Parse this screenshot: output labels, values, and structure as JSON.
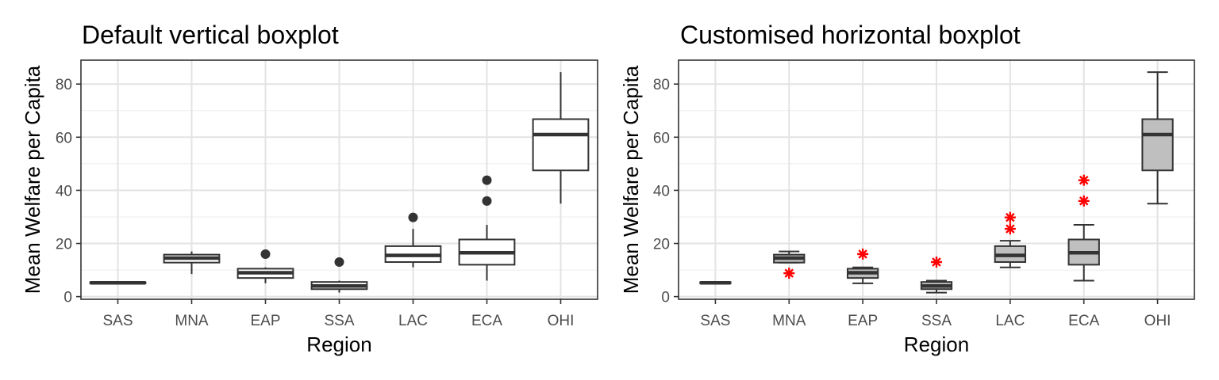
{
  "chart_data": [
    {
      "type": "box",
      "title": "Default vertical boxplot",
      "xlabel": "Region",
      "ylabel": "Mean Welfare per Capita",
      "ylim": [
        -1,
        89
      ],
      "yticks": [
        0,
        20,
        40,
        60,
        80
      ],
      "categories": [
        "SAS",
        "MNA",
        "EAP",
        "SSA",
        "LAC",
        "ECA",
        "OHI"
      ],
      "boxes": [
        {
          "name": "SAS",
          "lower_whisker": 5.0,
          "q1": 5.0,
          "median": 5.2,
          "q3": 5.4,
          "upper_whisker": 5.5,
          "outliers": []
        },
        {
          "name": "MNA",
          "lower_whisker": 8.5,
          "q1": 12.8,
          "median": 14.5,
          "q3": 15.8,
          "upper_whisker": 17.0,
          "outliers": []
        },
        {
          "name": "EAP",
          "lower_whisker": 5.0,
          "q1": 7.0,
          "median": 9.0,
          "q3": 10.5,
          "upper_whisker": 11.0,
          "outliers": [
            16.0
          ]
        },
        {
          "name": "SSA",
          "lower_whisker": 1.5,
          "q1": 2.8,
          "median": 4.0,
          "q3": 5.5,
          "upper_whisker": 6.0,
          "outliers": [
            13.0
          ]
        },
        {
          "name": "LAC",
          "lower_whisker": 11.0,
          "q1": 13.0,
          "median": 15.5,
          "q3": 19.0,
          "upper_whisker": 25.5,
          "outliers": [
            29.8
          ]
        },
        {
          "name": "ECA",
          "lower_whisker": 6.0,
          "q1": 12.0,
          "median": 16.5,
          "q3": 21.5,
          "upper_whisker": 27.0,
          "outliers": [
            36.0,
            43.8
          ]
        },
        {
          "name": "OHI",
          "lower_whisker": 35.0,
          "q1": 47.5,
          "median": 61.0,
          "q3": 66.8,
          "upper_whisker": 84.5,
          "outliers": []
        }
      ],
      "box_fill": "#ffffff",
      "outlier_style": "dot",
      "outlier_color": "#333333",
      "grid": true
    },
    {
      "type": "box",
      "title": "Customised horizontal boxplot",
      "xlabel": "Region",
      "ylabel": "Mean Welfare per Capita",
      "ylim": [
        -1,
        89
      ],
      "yticks": [
        0,
        20,
        40,
        60,
        80
      ],
      "categories": [
        "SAS",
        "MNA",
        "EAP",
        "SSA",
        "LAC",
        "ECA",
        "OHI"
      ],
      "boxes": [
        {
          "name": "SAS",
          "lower_whisker": 5.0,
          "q1": 5.0,
          "median": 5.2,
          "q3": 5.4,
          "upper_whisker": 5.5,
          "outliers": []
        },
        {
          "name": "MNA",
          "lower_whisker": 12.8,
          "q1": 12.8,
          "median": 14.5,
          "q3": 15.8,
          "upper_whisker": 17.0,
          "outliers": [
            8.8
          ]
        },
        {
          "name": "EAP",
          "lower_whisker": 5.0,
          "q1": 7.0,
          "median": 9.0,
          "q3": 10.5,
          "upper_whisker": 11.0,
          "outliers": [
            16.0
          ]
        },
        {
          "name": "SSA",
          "lower_whisker": 1.5,
          "q1": 2.8,
          "median": 4.0,
          "q3": 5.5,
          "upper_whisker": 6.0,
          "outliers": [
            13.0
          ]
        },
        {
          "name": "LAC",
          "lower_whisker": 11.0,
          "q1": 13.0,
          "median": 15.5,
          "q3": 19.0,
          "upper_whisker": 21.0,
          "outliers": [
            25.5,
            29.8
          ]
        },
        {
          "name": "ECA",
          "lower_whisker": 6.0,
          "q1": 12.0,
          "median": 16.5,
          "q3": 21.5,
          "upper_whisker": 27.0,
          "outliers": [
            36.0,
            43.8
          ]
        },
        {
          "name": "OHI",
          "lower_whisker": 35.0,
          "q1": 47.5,
          "median": 61.0,
          "q3": 66.8,
          "upper_whisker": 84.5,
          "outliers": []
        }
      ],
      "box_fill": "#bfbfbf",
      "outlier_style": "asterisk",
      "outlier_color": "#ff0000",
      "grid": true
    }
  ]
}
